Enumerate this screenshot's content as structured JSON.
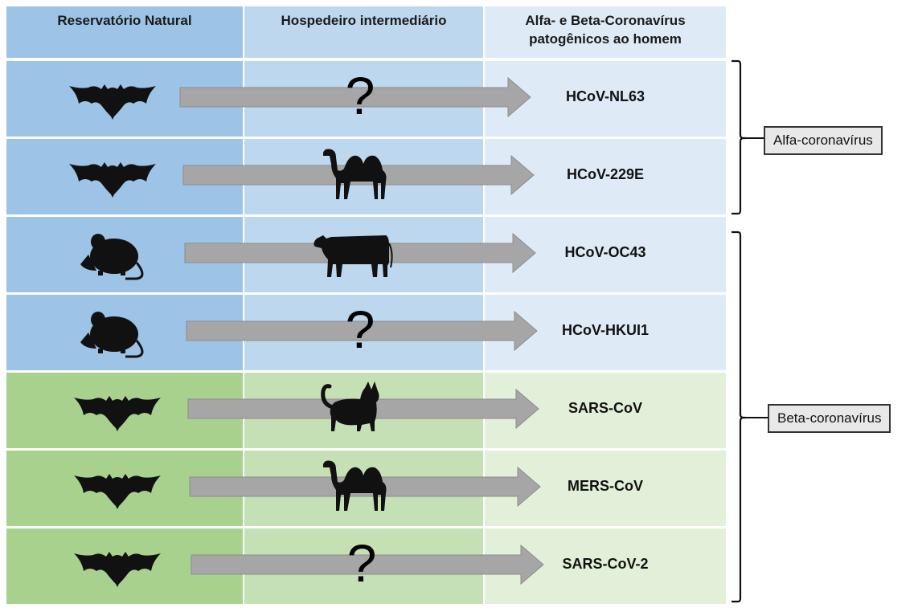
{
  "headers": {
    "reservoir": "Reservatório Natural",
    "intermediate": "Hospedeiro intermediário",
    "pathogenic_line1": "Alfa- e Beta-Coronavírus",
    "pathogenic_line2": "patogênicos ao homem"
  },
  "rows": [
    {
      "reservoir": "bat-icon",
      "intermediate": "question-mark",
      "intermediate_text": "?",
      "virus": "HCoV-NL63",
      "group": "alfa"
    },
    {
      "reservoir": "bat-icon",
      "intermediate": "camel-icon",
      "intermediate_text": "",
      "virus": "HCoV-229E",
      "group": "alfa"
    },
    {
      "reservoir": "mouse-icon",
      "intermediate": "cow-icon",
      "intermediate_text": "",
      "virus": "HCoV-OC43",
      "group": "beta"
    },
    {
      "reservoir": "mouse-icon",
      "intermediate": "question-mark",
      "intermediate_text": "?",
      "virus": "HCoV-HKUI1",
      "group": "beta"
    },
    {
      "reservoir": "bat-icon",
      "intermediate": "cat-icon",
      "intermediate_text": "",
      "virus": "SARS-CoV",
      "group": "beta"
    },
    {
      "reservoir": "bat-icon",
      "intermediate": "camel-icon",
      "intermediate_text": "",
      "virus": "MERS-CoV",
      "group": "beta"
    },
    {
      "reservoir": "bat-icon",
      "intermediate": "question-mark",
      "intermediate_text": "?",
      "virus": "SARS-CoV-2",
      "group": "beta"
    }
  ],
  "groups": {
    "alfa": "Alfa-coronavírus",
    "beta": "Beta-coronavírus"
  },
  "colors": {
    "blue_dark": "#9dc3e6",
    "blue_mid": "#bdd7ee",
    "blue_light": "#deebf7",
    "green_dark": "#a9d18e",
    "green_mid": "#c5e0b4",
    "green_light": "#e2f0d9",
    "arrow": "#a6a6a6"
  }
}
